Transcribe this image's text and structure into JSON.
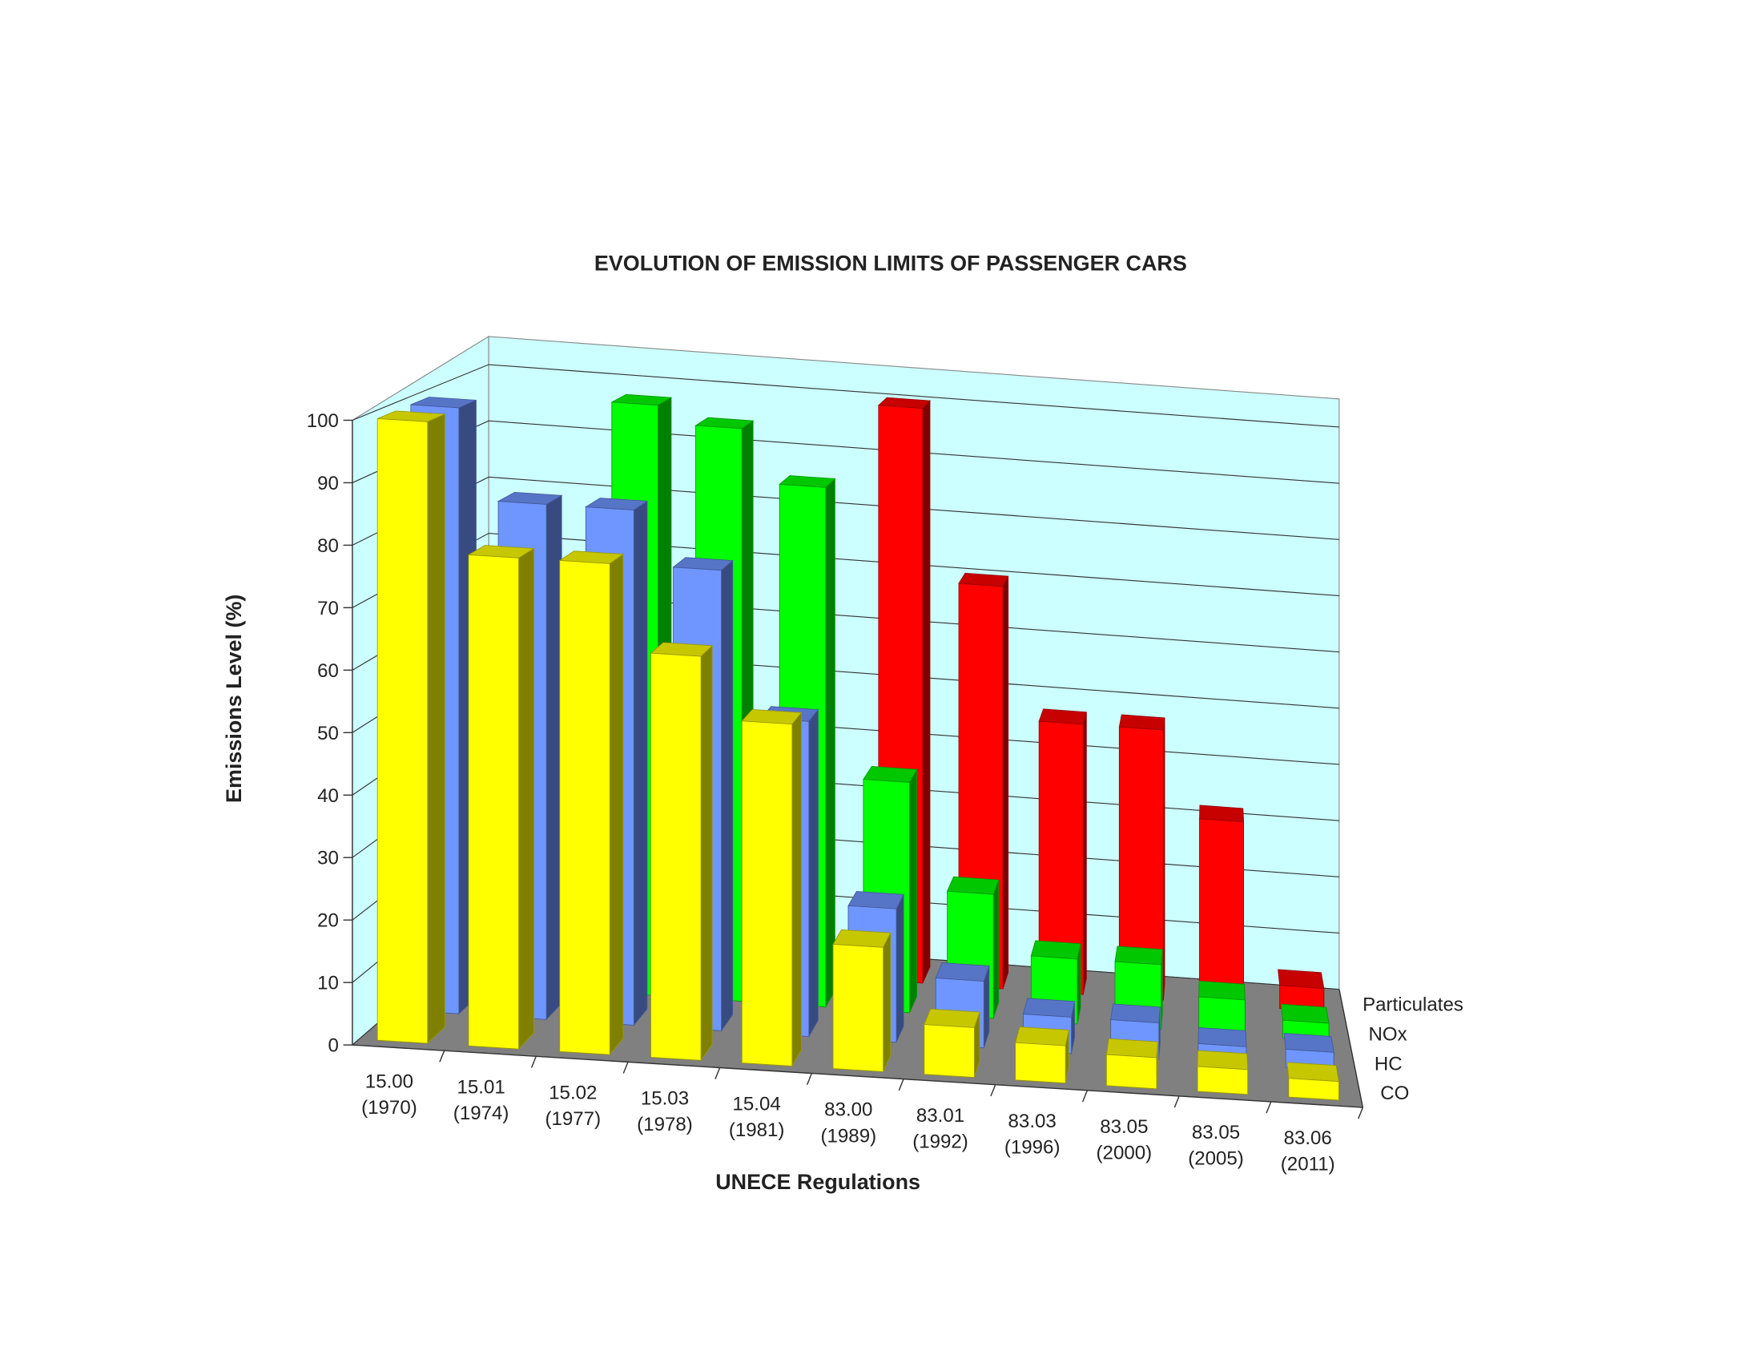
{
  "chart_data": {
    "type": "bar3d",
    "title": "EVOLUTION OF EMISSION LIMITS OF PASSENGER CARS",
    "x_label": "UNECE Regulations",
    "y_label": "Emissions Level (%)",
    "categories": [
      [
        "15.00",
        "(1970)"
      ],
      [
        "15.01",
        "(1974)"
      ],
      [
        "15.02",
        "(1977)"
      ],
      [
        "15.03",
        "(1978)"
      ],
      [
        "15.04",
        "(1981)"
      ],
      [
        "83.00",
        "(1989)"
      ],
      [
        "83.01",
        "(1992)"
      ],
      [
        "83.03",
        "(1996)"
      ],
      [
        "83.05",
        "(2000)"
      ],
      [
        "83.05",
        "(2005)"
      ],
      [
        "83.06",
        "(2011)"
      ]
    ],
    "series": [
      {
        "name": "CO",
        "color": "#ffff00",
        "values": [
          100,
          79,
          79,
          65,
          55,
          20,
          8,
          6,
          5,
          4,
          3
        ]
      },
      {
        "name": "HC",
        "color": "#6f96ff",
        "values": [
          100,
          85,
          85,
          76,
          52,
          22,
          11,
          6,
          6,
          3,
          3
        ]
      },
      {
        "name": "NOx",
        "color": "#00ff00",
        "values": [
          null,
          null,
          100,
          97,
          88,
          39,
          21,
          11,
          11,
          6,
          3
        ]
      },
      {
        "name": "Particulates",
        "color": "#ff0000",
        "values": [
          null,
          null,
          null,
          null,
          null,
          100,
          70,
          47,
          47,
          32,
          4
        ]
      }
    ],
    "ylim": [
      0,
      100
    ],
    "yticks": [
      0,
      10,
      20,
      30,
      40,
      50,
      60,
      70,
      80,
      90,
      100
    ],
    "grid": true
  }
}
